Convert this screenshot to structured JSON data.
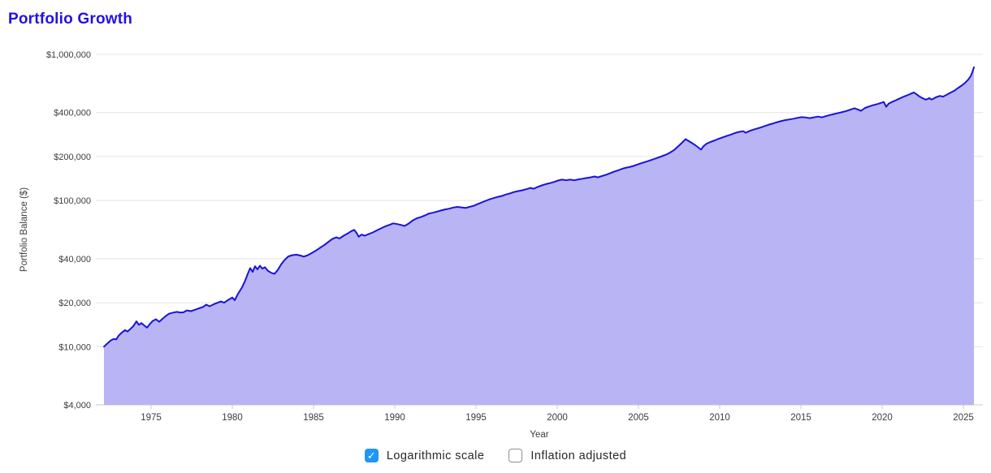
{
  "page": {
    "title": "Portfolio Growth"
  },
  "colors": {
    "title": "#2410e8",
    "line": "#1a13d8",
    "fill": "#b9b4f3",
    "grid": "#e4e4e8",
    "axis_line": "#c9c9ce",
    "tick_text": "#3c3c43",
    "checkbox_checked": "#2196f3"
  },
  "controls": {
    "logarithmic": {
      "label": "Logarithmic scale",
      "checked": true
    },
    "inflation": {
      "label": "Inflation adjusted",
      "checked": false
    }
  },
  "chart_data": {
    "type": "area",
    "title": "Portfolio Growth",
    "xlabel": "Year",
    "ylabel": "Portfolio Balance ($)",
    "y_scale": "log",
    "grid": "horizontal",
    "x_range": [
      1971.6,
      2026.2
    ],
    "y_range": [
      4000,
      1000000
    ],
    "x_ticks": [
      1975,
      1980,
      1985,
      1990,
      1995,
      2000,
      2005,
      2010,
      2015,
      2020,
      2025
    ],
    "y_ticks": [
      {
        "label": "$1,000,000",
        "value": 1000000
      },
      {
        "label": "$400,000",
        "value": 400000
      },
      {
        "label": "$200,000",
        "value": 200000
      },
      {
        "label": "$100,000",
        "value": 100000
      },
      {
        "label": "$40,000",
        "value": 40000
      },
      {
        "label": "$20,000",
        "value": 20000
      },
      {
        "label": "$10,000",
        "value": 10000
      },
      {
        "label": "$4,000",
        "value": 4000
      }
    ],
    "series": [
      {
        "name": "Portfolio Balance",
        "points": [
          [
            1972.1,
            10000
          ],
          [
            1972.3,
            10500
          ],
          [
            1972.5,
            11000
          ],
          [
            1972.7,
            11300
          ],
          [
            1972.85,
            11200
          ],
          [
            1973.0,
            11900
          ],
          [
            1973.2,
            12500
          ],
          [
            1973.4,
            13000
          ],
          [
            1973.55,
            12700
          ],
          [
            1973.75,
            13300
          ],
          [
            1973.9,
            13800
          ],
          [
            1974.1,
            14900
          ],
          [
            1974.25,
            14100
          ],
          [
            1974.4,
            14500
          ],
          [
            1974.6,
            13900
          ],
          [
            1974.75,
            13500
          ],
          [
            1974.95,
            14400
          ],
          [
            1975.1,
            15000
          ],
          [
            1975.3,
            15400
          ],
          [
            1975.5,
            14800
          ],
          [
            1975.7,
            15500
          ],
          [
            1975.9,
            16200
          ],
          [
            1976.1,
            16800
          ],
          [
            1976.35,
            17100
          ],
          [
            1976.6,
            17300
          ],
          [
            1976.8,
            17100
          ],
          [
            1977.0,
            17200
          ],
          [
            1977.2,
            17700
          ],
          [
            1977.45,
            17500
          ],
          [
            1977.7,
            17900
          ],
          [
            1977.95,
            18300
          ],
          [
            1978.2,
            18700
          ],
          [
            1978.4,
            19400
          ],
          [
            1978.6,
            18900
          ],
          [
            1978.85,
            19500
          ],
          [
            1979.1,
            20000
          ],
          [
            1979.3,
            20400
          ],
          [
            1979.5,
            20000
          ],
          [
            1979.75,
            20900
          ],
          [
            1980.0,
            21700
          ],
          [
            1980.15,
            20800
          ],
          [
            1980.35,
            23000
          ],
          [
            1980.6,
            25500
          ],
          [
            1980.8,
            28500
          ],
          [
            1980.95,
            31500
          ],
          [
            1981.1,
            34500
          ],
          [
            1981.25,
            32500
          ],
          [
            1981.4,
            35500
          ],
          [
            1981.55,
            33800
          ],
          [
            1981.7,
            35800
          ],
          [
            1981.85,
            34200
          ],
          [
            1982.0,
            35000
          ],
          [
            1982.2,
            33000
          ],
          [
            1982.4,
            32000
          ],
          [
            1982.6,
            31500
          ],
          [
            1982.8,
            33500
          ],
          [
            1983.0,
            36500
          ],
          [
            1983.2,
            39000
          ],
          [
            1983.45,
            41500
          ],
          [
            1983.7,
            42300
          ],
          [
            1983.95,
            42600
          ],
          [
            1984.2,
            42000
          ],
          [
            1984.4,
            41300
          ],
          [
            1984.65,
            42300
          ],
          [
            1984.9,
            43800
          ],
          [
            1985.15,
            45500
          ],
          [
            1985.4,
            47500
          ],
          [
            1985.65,
            49500
          ],
          [
            1985.9,
            52000
          ],
          [
            1986.15,
            54500
          ],
          [
            1986.4,
            56000
          ],
          [
            1986.6,
            55000
          ],
          [
            1986.85,
            57500
          ],
          [
            1987.1,
            59500
          ],
          [
            1987.3,
            61500
          ],
          [
            1987.5,
            63000
          ],
          [
            1987.65,
            60000
          ],
          [
            1987.78,
            56500
          ],
          [
            1987.95,
            58500
          ],
          [
            1988.15,
            57500
          ],
          [
            1988.4,
            59000
          ],
          [
            1988.65,
            60500
          ],
          [
            1988.9,
            62500
          ],
          [
            1989.15,
            64500
          ],
          [
            1989.4,
            66500
          ],
          [
            1989.65,
            68000
          ],
          [
            1989.9,
            69800
          ],
          [
            1990.15,
            69000
          ],
          [
            1990.4,
            68000
          ],
          [
            1990.6,
            67000
          ],
          [
            1990.85,
            69500
          ],
          [
            1991.1,
            73000
          ],
          [
            1991.35,
            75500
          ],
          [
            1991.6,
            77000
          ],
          [
            1991.85,
            79000
          ],
          [
            1992.1,
            81500
          ],
          [
            1992.35,
            82500
          ],
          [
            1992.6,
            84000
          ],
          [
            1992.85,
            85500
          ],
          [
            1993.1,
            87000
          ],
          [
            1993.35,
            88000
          ],
          [
            1993.6,
            89500
          ],
          [
            1993.85,
            90500
          ],
          [
            1994.1,
            89800
          ],
          [
            1994.35,
            89000
          ],
          [
            1994.6,
            90500
          ],
          [
            1994.85,
            92000
          ],
          [
            1995.1,
            94500
          ],
          [
            1995.35,
            97000
          ],
          [
            1995.6,
            99500
          ],
          [
            1995.85,
            102000
          ],
          [
            1996.1,
            104000
          ],
          [
            1996.35,
            106000
          ],
          [
            1996.6,
            107500
          ],
          [
            1996.85,
            110000
          ],
          [
            1997.1,
            112000
          ],
          [
            1997.35,
            114500
          ],
          [
            1997.6,
            116000
          ],
          [
            1997.85,
            117500
          ],
          [
            1998.1,
            119500
          ],
          [
            1998.35,
            122000
          ],
          [
            1998.55,
            120500
          ],
          [
            1998.8,
            124000
          ],
          [
            1999.05,
            127000
          ],
          [
            1999.3,
            129500
          ],
          [
            1999.55,
            131500
          ],
          [
            1999.8,
            134000
          ],
          [
            2000.05,
            137000
          ],
          [
            2000.3,
            139000
          ],
          [
            2000.55,
            137500
          ],
          [
            2000.8,
            139000
          ],
          [
            2001.05,
            137500
          ],
          [
            2001.3,
            139500
          ],
          [
            2001.55,
            141000
          ],
          [
            2001.8,
            142500
          ],
          [
            2002.05,
            144000
          ],
          [
            2002.3,
            146000
          ],
          [
            2002.5,
            144000
          ],
          [
            2002.75,
            147000
          ],
          [
            2003.0,
            150000
          ],
          [
            2003.25,
            153500
          ],
          [
            2003.5,
            157500
          ],
          [
            2003.75,
            161000
          ],
          [
            2004.0,
            165000
          ],
          [
            2004.25,
            168000
          ],
          [
            2004.45,
            169500
          ],
          [
            2004.7,
            172500
          ],
          [
            2004.95,
            176500
          ],
          [
            2005.2,
            180500
          ],
          [
            2005.45,
            184000
          ],
          [
            2005.7,
            188000
          ],
          [
            2005.95,
            192000
          ],
          [
            2006.2,
            196500
          ],
          [
            2006.45,
            201000
          ],
          [
            2006.7,
            206000
          ],
          [
            2006.95,
            213000
          ],
          [
            2007.2,
            222000
          ],
          [
            2007.45,
            235000
          ],
          [
            2007.7,
            250000
          ],
          [
            2007.9,
            263000
          ],
          [
            2008.1,
            255000
          ],
          [
            2008.3,
            247000
          ],
          [
            2008.5,
            239000
          ],
          [
            2008.7,
            230000
          ],
          [
            2008.85,
            223000
          ],
          [
            2009.0,
            235000
          ],
          [
            2009.2,
            245000
          ],
          [
            2009.45,
            252000
          ],
          [
            2009.7,
            258000
          ],
          [
            2009.95,
            265000
          ],
          [
            2010.2,
            271000
          ],
          [
            2010.45,
            277000
          ],
          [
            2010.7,
            283000
          ],
          [
            2010.95,
            290000
          ],
          [
            2011.2,
            295000
          ],
          [
            2011.45,
            298000
          ],
          [
            2011.6,
            291000
          ],
          [
            2011.8,
            298000
          ],
          [
            2012.05,
            305000
          ],
          [
            2012.3,
            311000
          ],
          [
            2012.55,
            317000
          ],
          [
            2012.8,
            324000
          ],
          [
            2013.05,
            331000
          ],
          [
            2013.3,
            337000
          ],
          [
            2013.55,
            344000
          ],
          [
            2013.8,
            350000
          ],
          [
            2014.05,
            355000
          ],
          [
            2014.3,
            359000
          ],
          [
            2014.55,
            363000
          ],
          [
            2014.8,
            368000
          ],
          [
            2015.05,
            372000
          ],
          [
            2015.3,
            370000
          ],
          [
            2015.55,
            366000
          ],
          [
            2015.8,
            371000
          ],
          [
            2016.05,
            375000
          ],
          [
            2016.3,
            371000
          ],
          [
            2016.55,
            378000
          ],
          [
            2016.8,
            385000
          ],
          [
            2017.05,
            391000
          ],
          [
            2017.3,
            397000
          ],
          [
            2017.55,
            403000
          ],
          [
            2017.8,
            410000
          ],
          [
            2018.05,
            419000
          ],
          [
            2018.3,
            428000
          ],
          [
            2018.5,
            420000
          ],
          [
            2018.7,
            411000
          ],
          [
            2018.95,
            430000
          ],
          [
            2019.2,
            440000
          ],
          [
            2019.45,
            449000
          ],
          [
            2019.7,
            457000
          ],
          [
            2019.95,
            466000
          ],
          [
            2020.1,
            472000
          ],
          [
            2020.25,
            438000
          ],
          [
            2020.4,
            460000
          ],
          [
            2020.6,
            472000
          ],
          [
            2020.85,
            486000
          ],
          [
            2021.1,
            500000
          ],
          [
            2021.35,
            515000
          ],
          [
            2021.6,
            528000
          ],
          [
            2021.8,
            540000
          ],
          [
            2021.95,
            549000
          ],
          [
            2022.1,
            535000
          ],
          [
            2022.3,
            515000
          ],
          [
            2022.5,
            500000
          ],
          [
            2022.7,
            490000
          ],
          [
            2022.9,
            502000
          ],
          [
            2023.05,
            490000
          ],
          [
            2023.3,
            508000
          ],
          [
            2023.55,
            520000
          ],
          [
            2023.75,
            514000
          ],
          [
            2023.95,
            528000
          ],
          [
            2024.2,
            546000
          ],
          [
            2024.45,
            565000
          ],
          [
            2024.7,
            592000
          ],
          [
            2024.9,
            612000
          ],
          [
            2025.1,
            638000
          ],
          [
            2025.3,
            672000
          ],
          [
            2025.45,
            710000
          ],
          [
            2025.55,
            755000
          ],
          [
            2025.65,
            815000
          ]
        ]
      }
    ]
  }
}
